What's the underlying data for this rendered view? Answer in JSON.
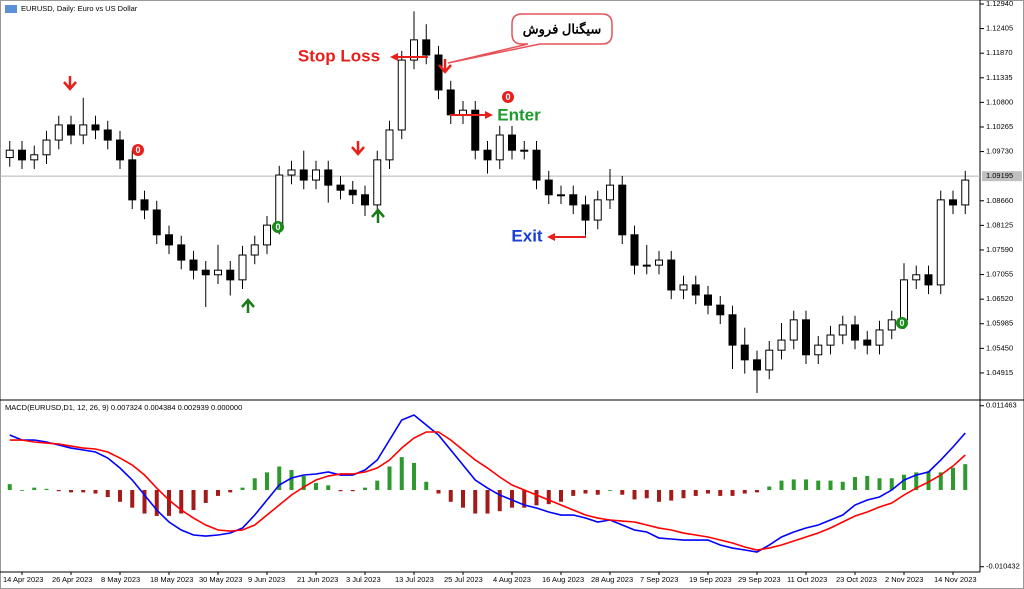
{
  "chart_data": [
    {
      "type": "candlestick",
      "title": "EURUSD, Daily:  Euro vs US Dollar",
      "categories": [
        null,
        "14 Apr 2023",
        null,
        null,
        null,
        "26 Apr 2023",
        null,
        null,
        null,
        "8 May 2023",
        null,
        null,
        null,
        "18 May 2023",
        null,
        null,
        null,
        "30 May 2023",
        null,
        null,
        null,
        "9 Jun 2023",
        null,
        null,
        null,
        "21 Jun 2023",
        null,
        null,
        null,
        "3 Jul 2023",
        null,
        null,
        null,
        "13 Jul 2023",
        null,
        null,
        null,
        "25 Jul 2023",
        null,
        null,
        null,
        "4 Aug 2023",
        null,
        null,
        null,
        "16 Aug 2023",
        null,
        null,
        null,
        "28 Aug 2023",
        null,
        null,
        null,
        "7 Sep 2023",
        null,
        null,
        null,
        "19 Sep 2023",
        null,
        null,
        null,
        "29 Sep 2023",
        null,
        null,
        null,
        "11 Oct 2023",
        null,
        null,
        null,
        "23 Oct 2023",
        null,
        null,
        null,
        "2 Nov 2023",
        null,
        null,
        null,
        "14 Nov 2023",
        null
      ],
      "open": [
        1.096,
        1.0976,
        1.0955,
        1.0966,
        1.0998,
        1.1031,
        1.1009,
        1.1031,
        1.102,
        1.0998,
        1.0955,
        1.0868,
        1.0846,
        1.0792,
        1.077,
        1.0737,
        1.0715,
        1.0705,
        1.0715,
        1.0694,
        1.0748,
        1.077,
        1.0813,
        1.0922,
        1.0933,
        1.0911,
        1.0933,
        1.09,
        1.0889,
        1.0879,
        1.0857,
        1.0955,
        1.102,
        1.1172,
        1.1216,
        1.1183,
        1.1107,
        1.1053,
        1.1063,
        1.0976,
        1.0955,
        1.1009,
        1.0976,
        1.0976,
        1.0911,
        1.0879,
        1.0879,
        1.0857,
        1.0824,
        1.0868,
        1.09,
        1.0792,
        1.0726,
        1.0726,
        1.0737,
        1.0672,
        1.0683,
        1.0661,
        1.0639,
        1.0618,
        1.0552,
        1.052,
        1.0498,
        1.0541,
        1.0563,
        1.0607,
        1.0531,
        1.0552,
        1.0574,
        1.0596,
        1.0563,
        1.0552,
        1.0585,
        1.0607,
        1.0694,
        1.0705,
        1.0683,
        1.0868,
        1.0857
      ],
      "high": [
        1.0996,
        1.0996,
        1.0986,
        1.1018,
        1.1051,
        1.1051,
        1.109,
        1.1051,
        1.104,
        1.1018,
        1.0975,
        1.0888,
        1.0866,
        1.0812,
        1.079,
        1.0757,
        1.0735,
        1.077,
        1.0735,
        1.0768,
        1.079,
        1.0833,
        1.0942,
        1.0953,
        1.0975,
        1.0953,
        1.0953,
        1.092,
        1.0909,
        1.0899,
        1.0975,
        1.104,
        1.1192,
        1.1278,
        1.125,
        1.1203,
        1.1127,
        1.1083,
        1.1083,
        1.0996,
        1.1029,
        1.1029,
        1.0996,
        1.0996,
        1.0931,
        1.0899,
        1.0899,
        1.0877,
        1.0888,
        1.0935,
        1.092,
        1.0812,
        1.077,
        1.0757,
        1.0757,
        1.0703,
        1.0703,
        1.0681,
        1.0659,
        1.0638,
        1.059,
        1.054,
        1.0561,
        1.06,
        1.0627,
        1.0627,
        1.0572,
        1.0594,
        1.0616,
        1.0616,
        1.0583,
        1.0605,
        1.0627,
        1.073,
        1.0725,
        1.0725,
        1.0888,
        1.0888,
        1.0931
      ],
      "low": [
        1.094,
        1.0935,
        1.0935,
        1.0946,
        1.0978,
        1.0989,
        1.0989,
        1.1,
        1.0978,
        1.0935,
        1.0848,
        1.0826,
        1.0772,
        1.075,
        1.0717,
        1.0695,
        1.0635,
        1.0685,
        1.066,
        1.0674,
        1.0728,
        1.075,
        1.0793,
        1.0902,
        1.0891,
        1.0891,
        1.0862,
        1.0869,
        1.0859,
        1.0833,
        1.0837,
        1.0935,
        1.1,
        1.1152,
        1.1163,
        1.1087,
        1.1033,
        1.1033,
        1.0956,
        1.0925,
        1.0935,
        1.0956,
        1.0956,
        1.0891,
        1.0859,
        1.0859,
        1.0837,
        1.079,
        1.0804,
        1.0848,
        1.0772,
        1.0706,
        1.0706,
        1.0706,
        1.0652,
        1.0652,
        1.0641,
        1.0619,
        1.0598,
        1.05,
        1.049,
        1.0448,
        1.0478,
        1.0521,
        1.0543,
        1.0511,
        1.0511,
        1.0532,
        1.0554,
        1.0543,
        1.0532,
        1.0532,
        1.0565,
        1.0587,
        1.0674,
        1.0663,
        1.0663,
        1.0837,
        1.0837
      ],
      "close": [
        1.0976,
        1.0955,
        1.0966,
        1.0998,
        1.1031,
        1.1009,
        1.1031,
        1.102,
        1.0998,
        1.0955,
        1.0868,
        1.0846,
        1.0792,
        1.077,
        1.0737,
        1.0715,
        1.0705,
        1.0715,
        1.0694,
        1.0748,
        1.077,
        1.0813,
        1.0922,
        1.0933,
        1.0911,
        1.0933,
        1.09,
        1.0889,
        1.0879,
        1.0857,
        1.0955,
        1.102,
        1.1172,
        1.1216,
        1.1183,
        1.1107,
        1.1053,
        1.1063,
        1.0976,
        1.0955,
        1.1009,
        1.0976,
        1.0976,
        1.0911,
        1.0879,
        1.0879,
        1.0857,
        1.0824,
        1.0868,
        1.09,
        1.0792,
        1.0726,
        1.0726,
        1.0737,
        1.0672,
        1.0683,
        1.0661,
        1.0639,
        1.0618,
        1.0552,
        1.052,
        1.0498,
        1.0541,
        1.0563,
        1.0607,
        1.0531,
        1.0552,
        1.0574,
        1.0596,
        1.0563,
        1.0552,
        1.0585,
        1.0607,
        1.0694,
        1.0705,
        1.0683,
        1.0868,
        1.0857,
        1.0911
      ],
      "up_color": "#ffffff",
      "down_color": "#000000",
      "ylim": [
        1.0437,
        1.13027
      ],
      "yticks": [
        {
          "value": 1.1294,
          "label": "1.12940"
        },
        1.12405,
        {
          "value": 1.1187,
          "label": "1.11870"
        },
        1.11335,
        {
          "value": 1.108,
          "label": "1.10800"
        },
        1.10265,
        {
          "value": 1.0973,
          "label": "1.09730"
        },
        {
          "value": 1.0866,
          "label": "1.08660"
        },
        1.08125,
        {
          "value": 1.0759,
          "label": "1.07590"
        },
        1.07055,
        {
          "value": 1.0652,
          "label": "1.06520"
        },
        1.05985,
        {
          "value": 1.0545,
          "label": "1.05450"
        },
        1.04915
      ],
      "current_price": 1.09195,
      "annotations": {
        "stop_loss": "Stop Loss",
        "enter": "Enter",
        "exit": "Exit",
        "signal": "سیگنال فروش"
      },
      "zero_markers": [
        "0",
        "0",
        "0",
        "0"
      ]
    },
    {
      "type": "macd",
      "label": "MACD(EURUSD,D1, 12, 26, 9) 0.007324 0.004384 0.002939 0.000000",
      "histogram": [
        0.0008,
        0,
        0.00032,
        0.00016,
        -0.00016,
        -0.00032,
        -0.00032,
        -0.00048,
        -0.00096,
        -0.0016,
        -0.0024,
        -0.0032,
        -0.00352,
        -0.00352,
        -0.0032,
        -0.00272,
        -0.00176,
        -0.0008,
        -0.00032,
        0.00032,
        0.0016,
        0.0024,
        0.0032,
        0.00272,
        0.00192,
        0.00096,
        0.00064,
        -0.00016,
        -0.00016,
        0.00032,
        0.00128,
        0.0032,
        0.00448,
        0.00368,
        0.00112,
        -0.00048,
        -0.0016,
        -0.0024,
        -0.0032,
        -0.0032,
        -0.00288,
        -0.0024,
        -0.0024,
        -0.00208,
        -0.00192,
        -0.0016,
        -0.0008,
        -0.00048,
        -0.00064,
        0,
        -0.00064,
        -0.00128,
        -0.00112,
        -0.0016,
        -0.00144,
        -0.00112,
        -0.0008,
        -0.00048,
        -0.0008,
        -0.0008,
        -0.00048,
        -0.00032,
        0.00048,
        0.00128,
        0.00144,
        0.00144,
        0.00128,
        0.00128,
        0.00112,
        0.00176,
        0.00192,
        0.0016,
        0.0016,
        0.00208,
        0.0024,
        0.00256,
        0.0024,
        0.00304,
        0.00352
      ],
      "histogram_colors": [
        "#2e9a2e",
        "#a31a1a"
      ],
      "macd": [
        0.00748,
        0.0068,
        0.0068,
        0.00653,
        0.00612,
        0.00571,
        0.00544,
        0.00517,
        0.00435,
        0.00299,
        0.00136,
        -0.00068,
        -0.00272,
        -0.00435,
        -0.00544,
        -0.00612,
        -0.00626,
        -0.00612,
        -0.00585,
        -0.00517,
        -0.0034,
        -0.00136,
        0.00068,
        0.00163,
        0.00204,
        0.00218,
        0.00245,
        0.00204,
        0.00204,
        0.00272,
        0.00408,
        0.0068,
        0.00952,
        0.0102,
        0.00884,
        0.00748,
        0.00544,
        0.0034,
        0.00136,
        0.00027,
        -0.00068,
        -0.00136,
        -0.00204,
        -0.00245,
        -0.00299,
        -0.0034,
        -0.0034,
        -0.00381,
        -0.00435,
        -0.00408,
        -0.00476,
        -0.00544,
        -0.00571,
        -0.00653,
        -0.00666,
        -0.0068,
        -0.0068,
        -0.0068,
        -0.00748,
        -0.00789,
        -0.00816,
        -0.00843,
        -0.00748,
        -0.00639,
        -0.00571,
        -0.00517,
        -0.00476,
        -0.00408,
        -0.0034,
        -0.00204,
        -0.00136,
        -0.00095,
        0,
        0.00136,
        0.00204,
        0.00245,
        0.00408,
        0.00585,
        0.00775
      ],
      "macd_color": "#0000ff",
      "signal": [
        0.0068,
        0.0068,
        0.00653,
        0.00639,
        0.00626,
        0.00598,
        0.00571,
        0.00558,
        0.00517,
        0.00435,
        0.0034,
        0.00204,
        0.00027,
        -0.00136,
        -0.00272,
        -0.00381,
        -0.00476,
        -0.00544,
        -0.00558,
        -0.00544,
        -0.00476,
        -0.0034,
        -0.00204,
        -0.00068,
        0.00041,
        0.00136,
        0.0019,
        0.00218,
        0.00218,
        0.00245,
        0.00299,
        0.00408,
        0.00571,
        0.00707,
        0.00789,
        0.00789,
        0.0068,
        0.00544,
        0.00408,
        0.00299,
        0.00177,
        0.00068,
        0,
        -0.00068,
        -0.00136,
        -0.00204,
        -0.00272,
        -0.0034,
        -0.00381,
        -0.00408,
        -0.00422,
        -0.00435,
        -0.00476,
        -0.00517,
        -0.00544,
        -0.00585,
        -0.00612,
        -0.00639,
        -0.0068,
        -0.00721,
        -0.00775,
        -0.00816,
        -0.00789,
        -0.00748,
        -0.00694,
        -0.00639,
        -0.00585,
        -0.00517,
        -0.00435,
        -0.00354,
        -0.00299,
        -0.00231,
        -0.00177,
        -0.00068,
        0.00027,
        0.00109,
        0.00204,
        0.00326,
        0.00476
      ],
      "signal_color": "#ff0000",
      "ylim": [
        -0.01115,
        0.01197
      ],
      "yticks": [
        0.011463,
        -0.010432
      ]
    }
  ]
}
